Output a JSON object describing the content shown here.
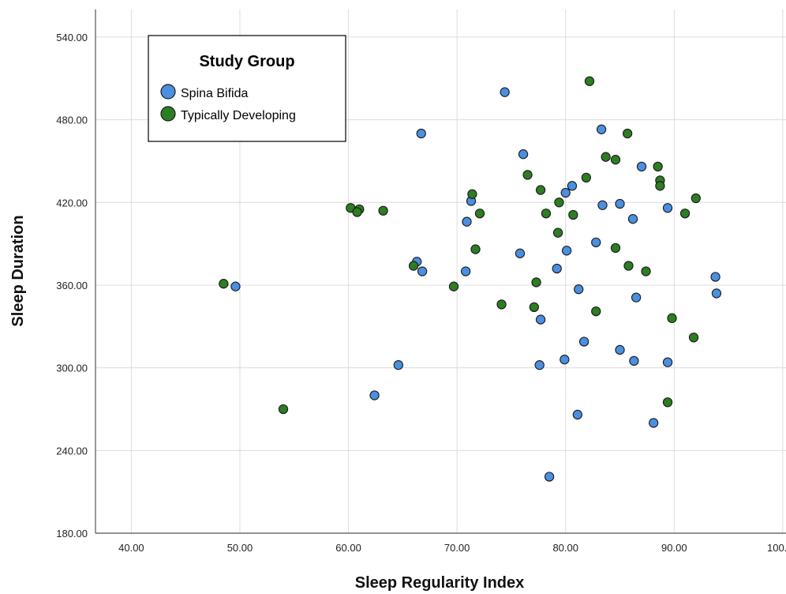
{
  "chart_data": {
    "type": "scatter",
    "xlabel": "Sleep Regularity Index",
    "ylabel": "Sleep Duration",
    "xlim": [
      36.7,
      100.3
    ],
    "ylim": [
      180,
      560
    ],
    "x_ticks": [
      "40.00",
      "50.00",
      "60.00",
      "70.00",
      "80.00",
      "90.00",
      "100.00"
    ],
    "y_ticks": [
      "180.00",
      "240.00",
      "300.00",
      "360.00",
      "420.00",
      "480.00",
      "540.00"
    ],
    "grid": true,
    "legend": {
      "title": "Study Group",
      "placement": "top-left"
    },
    "series": [
      {
        "name": "Spina Bifida",
        "color": "#4a8fe0",
        "points": [
          [
            74.4,
            500
          ],
          [
            66.7,
            470
          ],
          [
            83.3,
            473
          ],
          [
            76.1,
            455
          ],
          [
            87.0,
            446
          ],
          [
            80.6,
            432
          ],
          [
            80.0,
            427
          ],
          [
            71.3,
            421
          ],
          [
            83.4,
            418
          ],
          [
            85.0,
            419
          ],
          [
            89.4,
            416
          ],
          [
            86.2,
            408
          ],
          [
            70.9,
            406
          ],
          [
            82.8,
            391
          ],
          [
            75.8,
            383
          ],
          [
            80.1,
            385
          ],
          [
            66.3,
            377
          ],
          [
            66.8,
            370
          ],
          [
            70.8,
            370
          ],
          [
            79.2,
            372
          ],
          [
            93.8,
            366
          ],
          [
            93.9,
            354
          ],
          [
            49.6,
            359
          ],
          [
            81.2,
            357
          ],
          [
            86.5,
            351
          ],
          [
            77.7,
            335
          ],
          [
            81.7,
            319
          ],
          [
            85.0,
            313
          ],
          [
            79.9,
            306
          ],
          [
            86.3,
            305
          ],
          [
            89.4,
            304
          ],
          [
            64.6,
            302
          ],
          [
            77.6,
            302
          ],
          [
            62.4,
            280
          ],
          [
            81.1,
            266
          ],
          [
            88.1,
            260
          ],
          [
            78.5,
            221
          ]
        ]
      },
      {
        "name": "Typically Developing",
        "color": "#2d7d22",
        "points": [
          [
            82.2,
            508
          ],
          [
            85.7,
            470
          ],
          [
            83.7,
            453
          ],
          [
            84.6,
            451
          ],
          [
            88.5,
            446
          ],
          [
            76.5,
            440
          ],
          [
            81.9,
            438
          ],
          [
            88.7,
            436
          ],
          [
            88.7,
            432
          ],
          [
            77.7,
            429
          ],
          [
            71.4,
            426
          ],
          [
            92.0,
            423
          ],
          [
            79.4,
            420
          ],
          [
            60.2,
            416
          ],
          [
            61.0,
            415
          ],
          [
            60.8,
            413
          ],
          [
            63.2,
            414
          ],
          [
            72.1,
            412
          ],
          [
            78.2,
            412
          ],
          [
            80.7,
            411
          ],
          [
            91.0,
            412
          ],
          [
            79.3,
            398
          ],
          [
            84.6,
            387
          ],
          [
            71.7,
            386
          ],
          [
            66.0,
            374
          ],
          [
            85.8,
            374
          ],
          [
            87.4,
            370
          ],
          [
            77.3,
            362
          ],
          [
            48.5,
            361
          ],
          [
            69.7,
            359
          ],
          [
            74.1,
            346
          ],
          [
            77.1,
            344
          ],
          [
            82.8,
            341
          ],
          [
            89.8,
            336
          ],
          [
            91.8,
            322
          ],
          [
            89.4,
            275
          ],
          [
            54.0,
            270
          ]
        ]
      }
    ]
  }
}
